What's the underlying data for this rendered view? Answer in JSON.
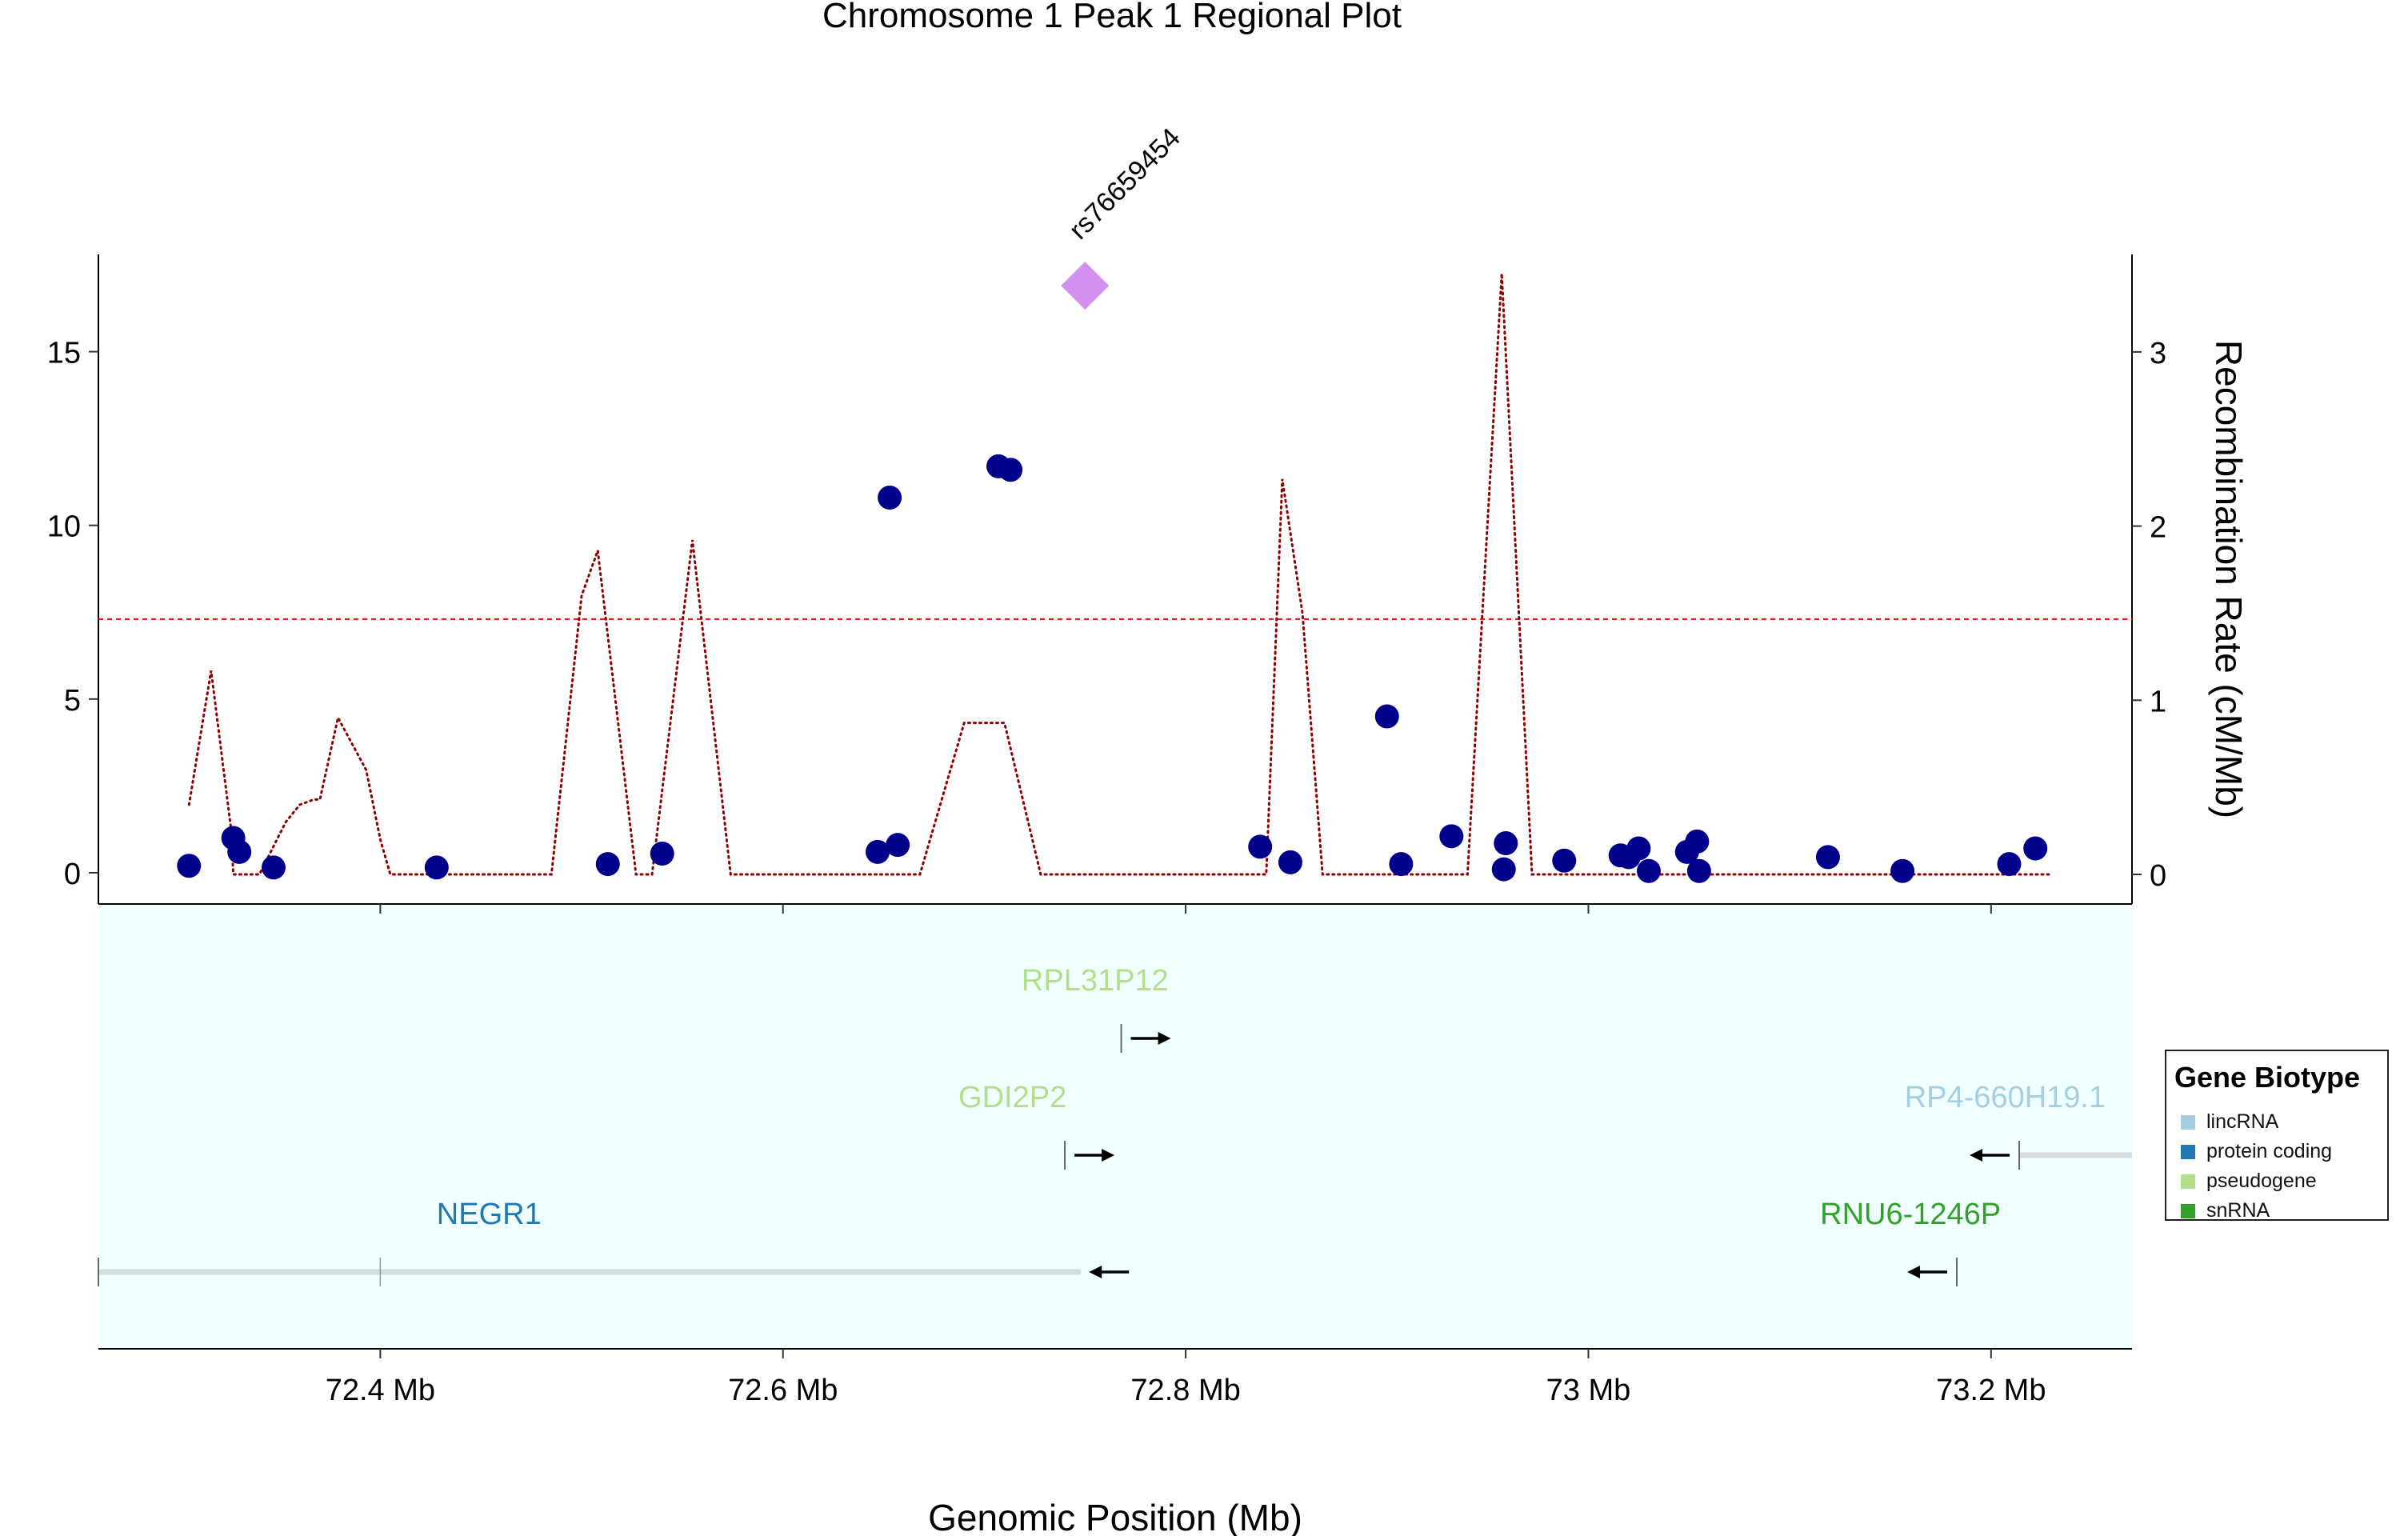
{
  "chart_data": {
    "type": "scatter",
    "title": "Chromosome 1 Peak 1 Regional Plot",
    "xlabel": "Genomic Position (Mb)",
    "ylabel_right": "Recombination Rate (cM/Mb)",
    "xlim": [
      72.26,
      73.27
    ],
    "ylim_left": [
      -0.9,
      17.8
    ],
    "ylim_right": [
      -0.17,
      3.56
    ],
    "x_ticks": [
      72.4,
      72.6,
      72.8,
      73.0,
      73.2
    ],
    "x_tick_labels": [
      "72.4 Mb",
      "72.6 Mb",
      "72.8 Mb",
      "73 Mb",
      "73.2 Mb"
    ],
    "y_ticks_left": [
      0,
      5,
      10,
      15
    ],
    "y_tick_labels_left": [
      "0",
      "5",
      "10",
      "15"
    ],
    "y_ticks_right": [
      0,
      1,
      2,
      3
    ],
    "y_tick_labels_right": [
      "0",
      "1",
      "2",
      "3"
    ],
    "significance_line": 7.3,
    "grid": false,
    "lead_snp": {
      "name": "rs76659454",
      "x": 72.75,
      "y": 16.9,
      "color": "#D291F0"
    },
    "snp_color": "#00008B",
    "snps": [
      {
        "x": 72.305,
        "y": 0.2
      },
      {
        "x": 72.327,
        "y": 1.0
      },
      {
        "x": 72.33,
        "y": 0.6
      },
      {
        "x": 72.347,
        "y": 0.15
      },
      {
        "x": 72.428,
        "y": 0.15
      },
      {
        "x": 72.513,
        "y": 0.25
      },
      {
        "x": 72.54,
        "y": 0.55
      },
      {
        "x": 72.647,
        "y": 0.6
      },
      {
        "x": 72.653,
        "y": 10.8
      },
      {
        "x": 72.657,
        "y": 0.8
      },
      {
        "x": 72.707,
        "y": 11.7
      },
      {
        "x": 72.713,
        "y": 11.6
      },
      {
        "x": 72.837,
        "y": 0.75
      },
      {
        "x": 72.852,
        "y": 0.3
      },
      {
        "x": 72.9,
        "y": 4.5
      },
      {
        "x": 72.907,
        "y": 0.25
      },
      {
        "x": 72.932,
        "y": 1.05
      },
      {
        "x": 72.958,
        "y": 0.1
      },
      {
        "x": 72.959,
        "y": 0.85
      },
      {
        "x": 72.988,
        "y": 0.35
      },
      {
        "x": 73.016,
        "y": 0.5
      },
      {
        "x": 73.02,
        "y": 0.45
      },
      {
        "x": 73.025,
        "y": 0.7
      },
      {
        "x": 73.03,
        "y": 0.05
      },
      {
        "x": 73.049,
        "y": 0.6
      },
      {
        "x": 73.054,
        "y": 0.9
      },
      {
        "x": 73.055,
        "y": 0.05
      },
      {
        "x": 73.119,
        "y": 0.45
      },
      {
        "x": 73.156,
        "y": 0.05
      },
      {
        "x": 73.209,
        "y": 0.25
      },
      {
        "x": 73.222,
        "y": 0.7
      }
    ],
    "recombination_color": "#8B0000",
    "recombination": [
      {
        "x": 72.305,
        "y": 0.4
      },
      {
        "x": 72.316,
        "y": 1.17
      },
      {
        "x": 72.326,
        "y": 0.25
      },
      {
        "x": 72.327,
        "y": 0.0
      },
      {
        "x": 72.34,
        "y": 0.0
      },
      {
        "x": 72.353,
        "y": 0.3
      },
      {
        "x": 72.36,
        "y": 0.4
      },
      {
        "x": 72.367,
        "y": 0.43
      },
      {
        "x": 72.37,
        "y": 0.43
      },
      {
        "x": 72.379,
        "y": 0.9
      },
      {
        "x": 72.393,
        "y": 0.6
      },
      {
        "x": 72.4,
        "y": 0.2
      },
      {
        "x": 72.405,
        "y": 0.0
      },
      {
        "x": 72.485,
        "y": 0.0
      },
      {
        "x": 72.5,
        "y": 1.6
      },
      {
        "x": 72.508,
        "y": 1.86
      },
      {
        "x": 72.527,
        "y": 0.0
      },
      {
        "x": 72.535,
        "y": 0.0
      },
      {
        "x": 72.555,
        "y": 1.92
      },
      {
        "x": 72.574,
        "y": 0.0
      },
      {
        "x": 72.668,
        "y": 0.0
      },
      {
        "x": 72.69,
        "y": 0.87
      },
      {
        "x": 72.71,
        "y": 0.87
      },
      {
        "x": 72.728,
        "y": 0.0
      },
      {
        "x": 72.84,
        "y": 0.0
      },
      {
        "x": 72.848,
        "y": 2.27
      },
      {
        "x": 72.858,
        "y": 1.5
      },
      {
        "x": 72.868,
        "y": 0.0
      },
      {
        "x": 72.94,
        "y": 0.0
      },
      {
        "x": 72.957,
        "y": 3.45
      },
      {
        "x": 72.972,
        "y": 0.0
      },
      {
        "x": 73.23,
        "y": 0.0
      }
    ]
  },
  "gene_track": {
    "background": "#F0FFFF",
    "genes": [
      {
        "name": "RPL31P12",
        "biotype": "pseudogene",
        "start": 72.768,
        "end": 72.768,
        "strand": "+",
        "row": 0,
        "label_x": 72.755
      },
      {
        "name": "GDI2P2",
        "biotype": "pseudogene",
        "start": 72.74,
        "end": 72.74,
        "strand": "+",
        "row": 1,
        "label_x": 72.714
      },
      {
        "name": "RP4-660H19.1",
        "biotype": "lincRNA",
        "start": 73.214,
        "end": 73.27,
        "strand": "-",
        "row": 1,
        "label_x": 73.207
      },
      {
        "name": "NEGR1",
        "biotype": "protein coding",
        "start": 72.26,
        "end": 72.748,
        "strand": "-",
        "row": 2,
        "label_x": 72.454
      },
      {
        "name": "RNU6-1246P",
        "biotype": "snRNA",
        "start": 73.183,
        "end": 73.183,
        "strand": "-",
        "row": 2,
        "label_x": 73.16
      }
    ]
  },
  "legend": {
    "title": "Gene Biotype",
    "items": [
      {
        "label": "lincRNA",
        "color": "#A6CEE3"
      },
      {
        "label": "protein coding",
        "color": "#1F78B4"
      },
      {
        "label": "pseudogene",
        "color": "#B2DF8A"
      },
      {
        "label": "snRNA",
        "color": "#33A02C"
      }
    ]
  }
}
